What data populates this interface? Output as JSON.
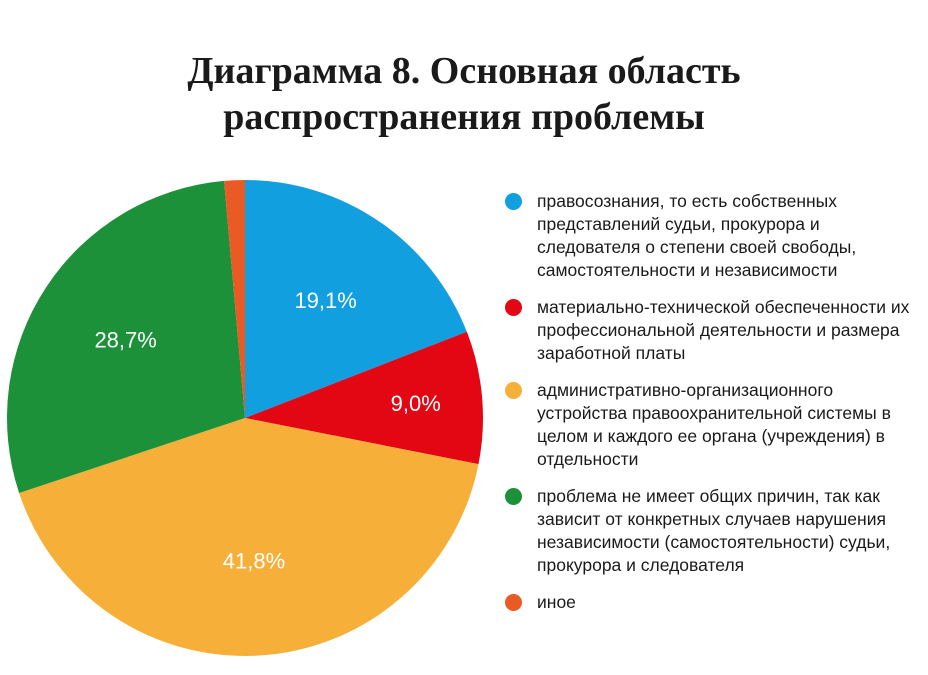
{
  "chart_data": {
    "type": "pie",
    "title_lines": [
      "Диаграмма 8. Основная область",
      "распространения проблемы"
    ],
    "slices": [
      {
        "label": "правосознания, то есть собственных представлений судьи, прокурора и следователя о степени своей свободы, самостоятельности и независимости",
        "value": 19.1,
        "display": "19,1%",
        "color": "#119fe0"
      },
      {
        "label": "материально-технической обеспеченности их профессиональной деятельности и размера заработной платы",
        "value": 9.0,
        "display": "9,0%",
        "color": "#e30613"
      },
      {
        "label": "административно-организационного устройства правоохранительной системы в целом и каждого ее органа (учреждения) в отдельности",
        "value": 41.8,
        "display": "41,8%",
        "color": "#f6b03a"
      },
      {
        "label": "проблема не имеет общих причин, так как зависит от конкретных случаев нарушения независимости (самостоятельности) судьи, прокурора и следователя",
        "value": 28.7,
        "display": "28,7%",
        "color": "#1c9139"
      },
      {
        "label": "иное",
        "value": 1.4,
        "display": "",
        "color": "#ea5a24"
      }
    ],
    "start_angle": 0,
    "direction": "clockwise",
    "legend_position": "right"
  }
}
